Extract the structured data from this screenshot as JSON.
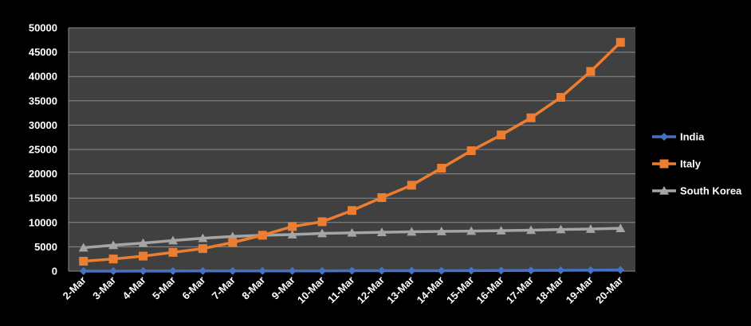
{
  "chart_data": {
    "type": "line",
    "title": "",
    "xlabel": "",
    "ylabel": "",
    "ylim": [
      0,
      50000
    ],
    "y_ticks": [
      0,
      5000,
      10000,
      15000,
      20000,
      25000,
      30000,
      35000,
      40000,
      45000,
      50000
    ],
    "categories": [
      "2-Mar",
      "3-Mar",
      "4-Mar",
      "5-Mar",
      "6-Mar",
      "7-Mar",
      "8-Mar",
      "9-Mar",
      "10-Mar",
      "11-Mar",
      "12-Mar",
      "13-Mar",
      "14-Mar",
      "15-Mar",
      "16-Mar",
      "17-Mar",
      "18-Mar",
      "19-Mar",
      "20-Mar"
    ],
    "grid": true,
    "legend_position": "right",
    "plot_background": "#404040",
    "series": [
      {
        "name": "India",
        "color": "#4472C4",
        "marker": "diamond",
        "values": [
          5,
          5,
          28,
          30,
          31,
          34,
          39,
          43,
          50,
          73,
          75,
          83,
          90,
          108,
          129,
          143,
          168,
          194,
          250
        ]
      },
      {
        "name": "Italy",
        "color": "#ED7D31",
        "marker": "square",
        "values": [
          2036,
          2502,
          3089,
          3858,
          4636,
          5883,
          7375,
          9172,
          10149,
          12462,
          15113,
          17660,
          21157,
          24747,
          27980,
          31506,
          35713,
          41035,
          47021
        ]
      },
      {
        "name": "South Korea",
        "color": "#A5A5A5",
        "marker": "triangle",
        "values": [
          4812,
          5328,
          5766,
          6284,
          6767,
          7134,
          7382,
          7513,
          7755,
          7869,
          7979,
          8086,
          8162,
          8236,
          8320,
          8413,
          8565,
          8652,
          8799
        ]
      }
    ]
  }
}
